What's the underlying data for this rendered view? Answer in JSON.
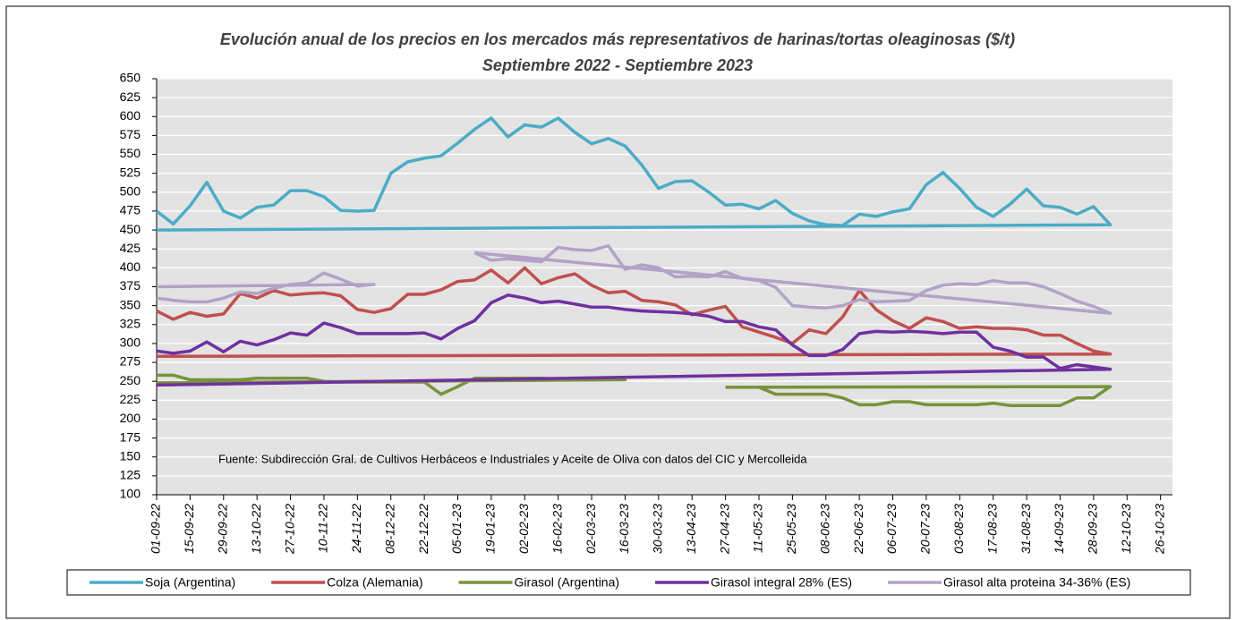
{
  "chart_data": {
    "type": "line",
    "title": "Evolución anual de los precios en los mercados más representativos de harinas/tortas oleaginosas ($/t)",
    "subtitle": "Septiembre 2022 - Septiembre 2023",
    "annotation": "Fuente: Subdirección Gral. de Cultivos Herbáceos e Industriales y Aceite de Oliva con datos del CIC y Mercolleida",
    "xlim": [
      "01-09-22",
      "31-10-23"
    ],
    "xticks": [
      "01-09-22",
      "15-09-22",
      "29-09-22",
      "13-10-22",
      "27-10-22",
      "10-11-22",
      "24-11-22",
      "08-12-22",
      "22-12-22",
      "05-01-23",
      "19-01-23",
      "02-02-23",
      "16-02-23",
      "02-03-23",
      "16-03-23",
      "30-03-23",
      "13-04-23",
      "27-04-23",
      "11-05-23",
      "25-05-23",
      "08-06-23",
      "22-06-23",
      "06-07-23",
      "20-07-23",
      "03-08-23",
      "17-08-23",
      "31-08-23",
      "14-09-23",
      "28-09-23",
      "12-10-23",
      "26-10-23"
    ],
    "ylim": [
      100,
      650
    ],
    "yticks": [
      100,
      125,
      150,
      175,
      200,
      225,
      250,
      275,
      300,
      325,
      350,
      375,
      400,
      425,
      450,
      475,
      500,
      525,
      550,
      575,
      600,
      625,
      650
    ],
    "grid": true,
    "legend": "bottom",
    "series": [
      {
        "name": "Soja (Argentina)",
        "color": "#4bacc6",
        "x": [
          "01-09-22",
          "08-09-22",
          "15-09-22",
          "22-09-22",
          "29-09-22",
          "06-10-22",
          "13-10-22",
          "20-10-22",
          "27-10-22",
          "03-11-22",
          "10-11-22",
          "17-11-22",
          "24-11-22",
          "01-12-22",
          "08-12-22",
          "15-12-22",
          "22-12-22",
          "29-12-22",
          "05-01-23",
          "12-01-23",
          "19-01-23",
          "26-01-23",
          "02-02-23",
          "09-02-23",
          "16-02-23",
          "23-02-23",
          "02-03-23",
          "09-03-23",
          "16-03-23",
          "23-03-23",
          "30-03-23",
          "06-04-23",
          "13-04-23",
          "20-04-23",
          "27-04-23",
          "04-05-23",
          "11-05-23",
          "18-05-23",
          "25-05-23",
          "01-06-23",
          "08-06-23",
          "15-06-23",
          "22-06-23",
          "29-06-23",
          "06-07-23",
          "13-07-23",
          "20-07-23",
          "27-07-23",
          "03-08-23",
          "10-08-23",
          "17-08-23",
          "24-08-23",
          "31-08-23",
          "07-09-23",
          "14-09-23",
          "21-09-23",
          "28-09-23",
          "05-10-23",
          "01-09-22"
        ],
        "values": [
          475,
          458,
          482,
          513,
          475,
          466,
          480,
          483,
          502,
          502,
          494,
          476,
          475,
          476,
          525,
          540,
          545,
          548,
          565,
          583,
          598,
          573,
          589,
          586,
          598,
          579,
          564,
          571,
          561,
          536,
          505,
          514,
          515,
          500,
          483,
          484,
          478,
          489,
          472,
          462,
          457,
          456,
          471,
          468,
          474,
          478,
          510,
          526,
          505,
          480,
          468,
          484,
          504,
          482,
          480,
          471,
          481,
          457,
          450
        ]
      },
      {
        "name": "Colza (Alemania)",
        "color": "#c0504d",
        "x": [
          "01-09-22",
          "08-09-22",
          "15-09-22",
          "22-09-22",
          "29-09-22",
          "06-10-22",
          "13-10-22",
          "20-10-22",
          "27-10-22",
          "03-11-22",
          "10-11-22",
          "17-11-22",
          "24-11-22",
          "01-12-22",
          "08-12-22",
          "15-12-22",
          "22-12-22",
          "29-12-22",
          "05-01-23",
          "12-01-23",
          "19-01-23",
          "26-01-23",
          "02-02-23",
          "09-02-23",
          "16-02-23",
          "23-02-23",
          "02-03-23",
          "09-03-23",
          "16-03-23",
          "23-03-23",
          "30-03-23",
          "06-04-23",
          "13-04-23",
          "20-04-23",
          "27-04-23",
          "04-05-23",
          "11-05-23",
          "18-05-23",
          "25-05-23",
          "01-06-23",
          "08-06-23",
          "15-06-23",
          "22-06-23",
          "29-06-23",
          "06-07-23",
          "13-07-23",
          "20-07-23",
          "27-07-23",
          "03-08-23",
          "10-08-23",
          "17-08-23",
          "24-08-23",
          "31-08-23",
          "07-09-23",
          "14-09-23",
          "21-09-23",
          "28-09-23",
          "05-10-23",
          "01-09-22"
        ],
        "values": [
          343,
          332,
          341,
          336,
          339,
          366,
          360,
          370,
          364,
          366,
          367,
          363,
          345,
          341,
          346,
          365,
          365,
          371,
          382,
          384,
          397,
          380,
          400,
          379,
          387,
          392,
          377,
          367,
          369,
          357,
          355,
          351,
          338,
          344,
          349,
          322,
          315,
          308,
          300,
          318,
          313,
          335,
          370,
          345,
          330,
          320,
          334,
          329,
          320,
          322,
          320,
          320,
          318,
          311,
          311,
          300,
          290,
          286,
          283
        ]
      },
      {
        "name": "Girasol (Argentina)",
        "color": "#77933c",
        "x": [
          "01-09-22",
          "08-09-22",
          "15-09-22",
          "22-09-22",
          "29-09-22",
          "06-10-22",
          "13-10-22",
          "20-10-22",
          "27-10-22",
          "03-11-22",
          "10-11-22",
          "17-11-22",
          "24-11-22",
          "01-12-22",
          "08-12-22",
          "15-12-22",
          "22-12-22",
          "29-12-22",
          "05-01-23",
          "12-01-23",
          "19-01-23",
          "26-01-23",
          "02-02-23",
          "09-02-23",
          "16-02-23",
          "23-02-23",
          "02-03-23",
          "09-03-23",
          "16-03-23",
          "01-09-22",
          null,
          "27-04-23",
          "04-05-23",
          "11-05-23",
          "18-05-23",
          "25-05-23",
          "01-06-23",
          "08-06-23",
          "15-06-23",
          "22-06-23",
          "29-06-23",
          "06-07-23",
          "13-07-23",
          "20-07-23",
          "27-07-23",
          "03-08-23",
          "10-08-23",
          "17-08-23",
          "24-08-23",
          "31-08-23",
          "07-09-23",
          "14-09-23",
          "21-09-23",
          "28-09-23",
          "05-10-23",
          "27-04-23"
        ],
        "values": [
          258,
          258,
          252,
          252,
          252,
          252,
          254,
          254,
          254,
          254,
          250,
          249,
          249,
          249,
          249,
          249,
          249,
          233,
          243,
          254,
          254,
          254,
          254,
          254,
          253,
          253,
          253,
          253,
          252,
          248,
          null,
          242,
          242,
          242,
          233,
          233,
          233,
          233,
          228,
          219,
          219,
          223,
          223,
          219,
          219,
          219,
          219,
          221,
          218,
          218,
          218,
          218,
          228,
          228,
          243,
          242
        ]
      },
      {
        "name": "Girasol integral 28% (ES)",
        "color": "#7030a0",
        "x": [
          "01-09-22",
          "08-09-22",
          "15-09-22",
          "22-09-22",
          "29-09-22",
          "06-10-22",
          "13-10-22",
          "20-10-22",
          "27-10-22",
          "03-11-22",
          "10-11-22",
          "17-11-22",
          "24-11-22",
          "01-12-22",
          "08-12-22",
          "15-12-22",
          "22-12-22",
          "29-12-22",
          "05-01-23",
          "12-01-23",
          "19-01-23",
          "26-01-23",
          "02-02-23",
          "09-02-23",
          "16-02-23",
          "23-02-23",
          "02-03-23",
          "09-03-23",
          "16-03-23",
          "23-03-23",
          "30-03-23",
          "06-04-23",
          "13-04-23",
          "20-04-23",
          "27-04-23",
          "04-05-23",
          "11-05-23",
          "18-05-23",
          "25-05-23",
          "01-06-23",
          "08-06-23",
          "15-06-23",
          "22-06-23",
          "29-06-23",
          "06-07-23",
          "13-07-23",
          "20-07-23",
          "27-07-23",
          "03-08-23",
          "10-08-23",
          "17-08-23",
          "24-08-23",
          "31-08-23",
          "07-09-23",
          "14-09-23",
          "21-09-23",
          "28-09-23",
          "05-10-23",
          "01-09-22"
        ],
        "values": [
          290,
          287,
          290,
          302,
          289,
          303,
          298,
          305,
          314,
          311,
          327,
          321,
          313,
          313,
          313,
          313,
          314,
          306,
          320,
          330,
          354,
          364,
          360,
          354,
          356,
          352,
          348,
          348,
          345,
          343,
          342,
          341,
          339,
          336,
          329,
          329,
          322,
          318,
          298,
          284,
          284,
          292,
          313,
          316,
          315,
          316,
          315,
          313,
          315,
          315,
          295,
          290,
          282,
          282,
          267,
          272,
          269,
          266,
          245
        ]
      },
      {
        "name": "Girasol alta proteina 34-36% (ES)",
        "color": "#b3a2c7",
        "x": [
          "01-09-22",
          "08-09-22",
          "15-09-22",
          "22-09-22",
          "29-09-22",
          "06-10-22",
          "13-10-22",
          "20-10-22",
          "27-10-22",
          "03-11-22",
          "10-11-22",
          "17-11-22",
          "24-11-22",
          "01-12-22",
          "01-09-22",
          null,
          "12-01-23",
          "19-01-23",
          "26-01-23",
          "02-02-23",
          "09-02-23",
          "16-02-23",
          "23-02-23",
          "02-03-23",
          "09-03-23",
          "16-03-23",
          "23-03-23",
          "30-03-23",
          "06-04-23",
          "13-04-23",
          "20-04-23",
          "27-04-23",
          "04-05-23",
          "11-05-23",
          "18-05-23",
          "25-05-23",
          "01-06-23",
          "08-06-23",
          "15-06-23",
          "22-06-23",
          "29-06-23",
          "06-07-23",
          "13-07-23",
          "20-07-23",
          "27-07-23",
          "03-08-23",
          "10-08-23",
          "17-08-23",
          "24-08-23",
          "31-08-23",
          "07-09-23",
          "14-09-23",
          "21-09-23",
          "28-09-23",
          "05-10-23",
          "12-01-23"
        ],
        "values": [
          360,
          357,
          355,
          355,
          360,
          368,
          366,
          373,
          378,
          380,
          393,
          385,
          376,
          378,
          375,
          null,
          420,
          410,
          412,
          410,
          408,
          427,
          424,
          423,
          429,
          398,
          404,
          400,
          388,
          389,
          388,
          395,
          386,
          383,
          374,
          350,
          348,
          347,
          350,
          358,
          355,
          356,
          357,
          370,
          377,
          379,
          378,
          383,
          380,
          380,
          375,
          366,
          356,
          349,
          340,
          420
        ]
      }
    ]
  }
}
